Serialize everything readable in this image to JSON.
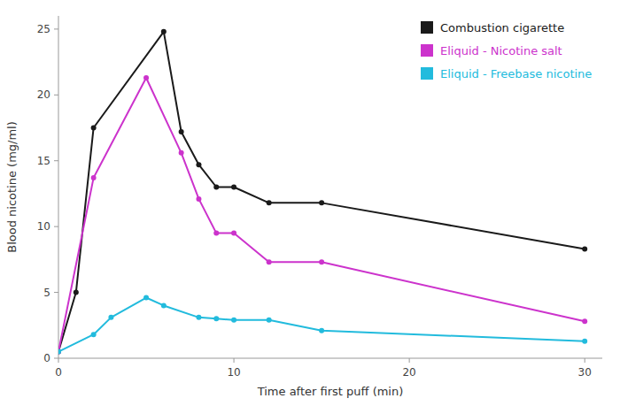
{
  "chart_data": {
    "type": "line",
    "xlabel": "Time after first puff (min)",
    "ylabel": "Blood nicotine (mg/ml)",
    "series": [
      {
        "name": "Combustion cigarette",
        "color": "#1a1a1a",
        "marker": "circle",
        "x": [
          0,
          1,
          2,
          6,
          7,
          8,
          9,
          10,
          12,
          15,
          30
        ],
        "values": [
          0.5,
          5.0,
          17.5,
          24.8,
          17.2,
          14.7,
          13.0,
          13.0,
          11.8,
          11.8,
          8.3
        ]
      },
      {
        "name": "Eliquid - Nicotine salt",
        "color": "#cc33cc",
        "marker": "circle",
        "x": [
          0,
          2,
          5,
          7,
          8,
          9,
          10,
          12,
          15,
          30
        ],
        "values": [
          0.5,
          13.7,
          21.3,
          15.6,
          12.1,
          9.5,
          9.5,
          7.3,
          7.3,
          2.8
        ]
      },
      {
        "name": "Eliquid - Freebase nicotine",
        "color": "#22bbdd",
        "marker": "circle",
        "x": [
          0,
          2,
          3,
          5,
          6,
          8,
          9,
          10,
          12,
          15,
          30
        ],
        "values": [
          0.5,
          1.8,
          3.1,
          4.6,
          4.0,
          3.1,
          3.0,
          2.9,
          2.9,
          2.1,
          1.3
        ]
      }
    ],
    "xlim": [
      0,
      31
    ],
    "ylim": [
      0,
      26
    ],
    "xticks": [
      0,
      10,
      20,
      30
    ],
    "yticks": [
      0,
      5,
      10,
      15,
      20,
      25
    ],
    "grid": false,
    "legend": "upper right"
  }
}
